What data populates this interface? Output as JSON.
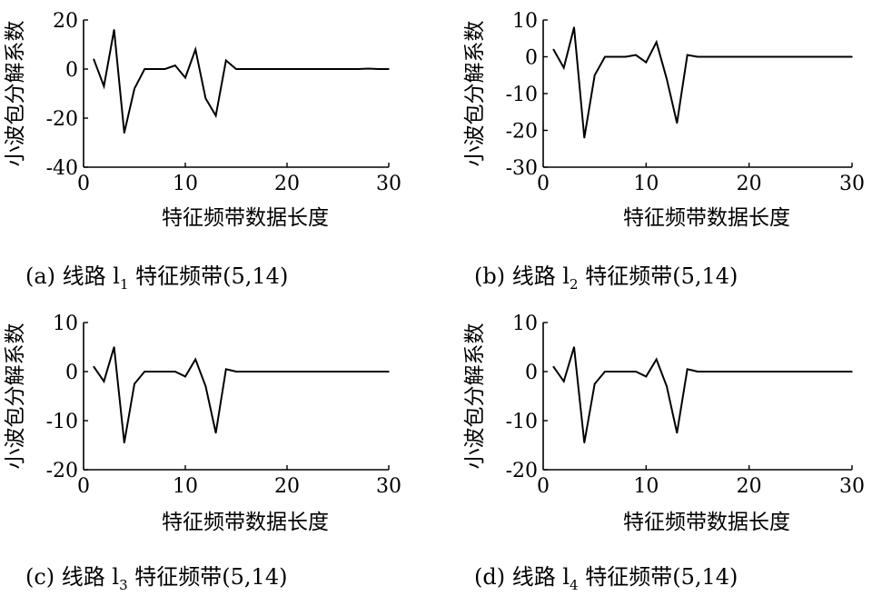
{
  "chart_data": [
    {
      "type": "line",
      "panel": "a",
      "caption": {
        "prefix": "(a) 线路 l",
        "sub": "1",
        "suffix": " 特征频带(5,14)"
      },
      "xlabel": "特征频带数据长度",
      "ylabel": "小波包分解系数",
      "xlim": [
        0,
        30
      ],
      "ylim": [
        -40,
        20
      ],
      "xticks": [
        10,
        20,
        30
      ],
      "yticks": [
        -40,
        -20,
        0,
        20
      ],
      "x": [
        1,
        2,
        3,
        4,
        5,
        6,
        7,
        8,
        9,
        10,
        11,
        12,
        13,
        14,
        15,
        16,
        17,
        18,
        19,
        20,
        21,
        22,
        23,
        24,
        25,
        26,
        27,
        28,
        29,
        30
      ],
      "series": [
        {
          "values": [
            4,
            -7,
            16,
            -26,
            -8,
            0,
            0,
            0,
            1.5,
            -3.5,
            8,
            -12,
            -19,
            3.5,
            0,
            0,
            0,
            0,
            0,
            0,
            0,
            0,
            0,
            0,
            0,
            0,
            0,
            0.2,
            0,
            0
          ]
        }
      ]
    },
    {
      "type": "line",
      "panel": "b",
      "caption": {
        "prefix": "(b) 线路 l",
        "sub": "2",
        "suffix": " 特征频带(5,14)"
      },
      "xlabel": "特征频带数据长度",
      "ylabel": "小波包分解系数",
      "xlim": [
        0,
        30
      ],
      "ylim": [
        -30,
        10
      ],
      "xticks": [
        10,
        20,
        30
      ],
      "yticks": [
        -30,
        -20,
        -10,
        0,
        10
      ],
      "x": [
        1,
        2,
        3,
        4,
        5,
        6,
        7,
        8,
        9,
        10,
        11,
        12,
        13,
        14,
        15,
        16,
        17,
        18,
        19,
        20,
        21,
        22,
        23,
        24,
        25,
        26,
        27,
        28,
        29,
        30
      ],
      "series": [
        {
          "values": [
            2,
            -3,
            8,
            -22,
            -5,
            0,
            0,
            0,
            0.5,
            -1.5,
            4,
            -6,
            -18,
            0.5,
            0,
            0,
            0,
            0,
            0,
            0,
            0,
            0,
            0,
            0,
            0,
            0,
            0,
            0,
            0,
            0
          ]
        }
      ]
    },
    {
      "type": "line",
      "panel": "c",
      "caption": {
        "prefix": "(c) 线路 l",
        "sub": "3",
        "suffix": " 特征频带(5,14)"
      },
      "xlabel": "特征频带数据长度",
      "ylabel": "小波包分解系数",
      "xlim": [
        0,
        30
      ],
      "ylim": [
        -20,
        10
      ],
      "xticks": [
        10,
        20,
        30
      ],
      "yticks": [
        -20,
        -10,
        0,
        10
      ],
      "x": [
        1,
        2,
        3,
        4,
        5,
        6,
        7,
        8,
        9,
        10,
        11,
        12,
        13,
        14,
        15,
        16,
        17,
        18,
        19,
        20,
        21,
        22,
        23,
        24,
        25,
        26,
        27,
        28,
        29,
        30
      ],
      "series": [
        {
          "values": [
            1,
            -2,
            5,
            -14.5,
            -2.5,
            0,
            0,
            0,
            0,
            -1,
            2.5,
            -3,
            -12.5,
            0.5,
            0,
            0,
            0,
            0,
            0,
            0,
            0,
            0,
            0,
            0,
            0,
            0,
            0,
            0,
            0,
            0
          ]
        }
      ]
    },
    {
      "type": "line",
      "panel": "d",
      "caption": {
        "prefix": "(d) 线路 l",
        "sub": "4",
        "suffix": " 特征频带(5,14)"
      },
      "xlabel": "特征频带数据长度",
      "ylabel": "小波包分解系数",
      "xlim": [
        0,
        30
      ],
      "ylim": [
        -20,
        10
      ],
      "xticks": [
        10,
        20,
        30
      ],
      "yticks": [
        -20,
        -10,
        0,
        10
      ],
      "x": [
        1,
        2,
        3,
        4,
        5,
        6,
        7,
        8,
        9,
        10,
        11,
        12,
        13,
        14,
        15,
        16,
        17,
        18,
        19,
        20,
        21,
        22,
        23,
        24,
        25,
        26,
        27,
        28,
        29,
        30
      ],
      "series": [
        {
          "values": [
            1,
            -2,
            5,
            -14.5,
            -2.5,
            0,
            0,
            0,
            0,
            -1,
            2.5,
            -3,
            -12.5,
            0.5,
            0,
            0,
            0,
            0,
            0,
            0,
            0,
            0,
            0,
            0,
            0,
            0,
            0,
            0,
            0,
            0
          ]
        }
      ]
    }
  ]
}
